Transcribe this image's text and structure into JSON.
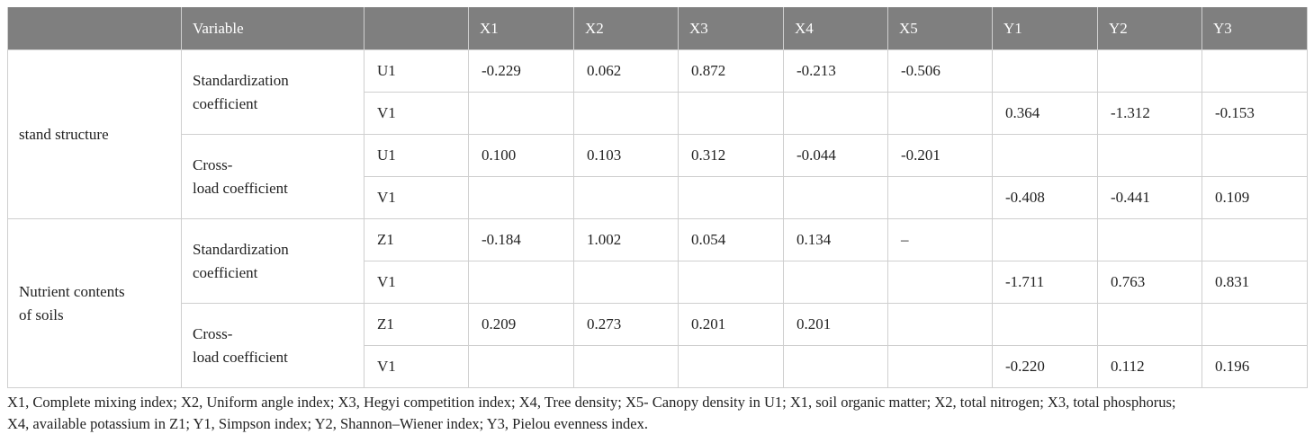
{
  "table": {
    "headers": [
      "",
      "Variable",
      "",
      "X1",
      "X2",
      "X3",
      "X4",
      "X5",
      "Y1",
      "Y2",
      "Y3"
    ],
    "groups": [
      {
        "name": "stand structure",
        "blocks": [
          {
            "label_line1": "Standardization",
            "label_line2": "coefficient",
            "rows": [
              {
                "sub": "U1",
                "values": [
                  "-0.229",
                  "0.062",
                  "0.872",
                  "-0.213",
                  "-0.506",
                  "",
                  "",
                  ""
                ]
              },
              {
                "sub": "V1",
                "values": [
                  "",
                  "",
                  "",
                  "",
                  "",
                  "0.364",
                  "-1.312",
                  "-0.153"
                ]
              }
            ]
          },
          {
            "label_line1": "Cross-",
            "label_line2": "load coefficient",
            "rows": [
              {
                "sub": "U1",
                "values": [
                  "0.100",
                  "0.103",
                  "0.312",
                  "-0.044",
                  "-0.201",
                  "",
                  "",
                  ""
                ]
              },
              {
                "sub": "V1",
                "values": [
                  "",
                  "",
                  "",
                  "",
                  "",
                  "-0.408",
                  "-0.441",
                  "0.109"
                ]
              }
            ]
          }
        ]
      },
      {
        "name_line1": "Nutrient contents",
        "name_line2": "of soils",
        "blocks": [
          {
            "label_line1": "Standardization",
            "label_line2": "coefficient",
            "rows": [
              {
                "sub": "Z1",
                "values": [
                  "-0.184",
                  "1.002",
                  "0.054",
                  "0.134",
                  "–",
                  "",
                  "",
                  ""
                ]
              },
              {
                "sub": "V1",
                "values": [
                  "",
                  "",
                  "",
                  "",
                  "",
                  "-1.711",
                  "0.763",
                  "0.831"
                ]
              }
            ]
          },
          {
            "label_line1": "Cross-",
            "label_line2": "load coefficient",
            "rows": [
              {
                "sub": "Z1",
                "values": [
                  "0.209",
                  "0.273",
                  "0.201",
                  "0.201",
                  "",
                  "",
                  "",
                  ""
                ]
              },
              {
                "sub": "V1",
                "values": [
                  "",
                  "",
                  "",
                  "",
                  "",
                  "-0.220",
                  "0.112",
                  "0.196"
                ]
              }
            ]
          }
        ]
      }
    ]
  },
  "footnote": {
    "line1": "X1, Complete mixing index; X2, Uniform angle index; X3, Hegyi competition index; X4, Tree density; X5- Canopy density in U1; X1, soil organic matter; X2, total nitrogen; X3, total phosphorus;",
    "line2": "X4, available potassium in Z1; Y1, Simpson index; Y2, Shannon–Wiener index; Y3, Pielou evenness index."
  }
}
